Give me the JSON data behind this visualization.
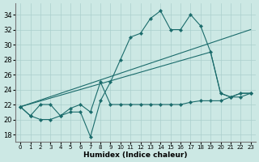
{
  "xlabel": "Humidex (Indice chaleur)",
  "xlim": [
    -0.5,
    23.5
  ],
  "ylim": [
    17,
    35.5
  ],
  "yticks": [
    18,
    20,
    22,
    24,
    26,
    28,
    30,
    32,
    34
  ],
  "xticks": [
    0,
    1,
    2,
    3,
    4,
    5,
    6,
    7,
    8,
    9,
    10,
    11,
    12,
    13,
    14,
    15,
    16,
    17,
    18,
    19,
    20,
    21,
    22,
    23
  ],
  "bg_color": "#cce8e4",
  "grid_color": "#aacfcc",
  "line_color": "#1a6b6b",
  "series": [
    {
      "x": [
        0,
        1,
        2,
        3,
        4,
        5,
        6,
        7,
        8,
        9,
        10,
        11,
        12,
        13,
        14,
        15,
        16,
        17,
        18,
        19,
        20,
        21,
        22,
        23
      ],
      "y": [
        21.7,
        20.5,
        20.0,
        20.0,
        20.5,
        21.0,
        21.0,
        17.7,
        22.5,
        25.0,
        28.0,
        31.0,
        31.5,
        33.5,
        34.5,
        32.0,
        32.0,
        34.0,
        32.5,
        29.0,
        23.5,
        23.0,
        23.5,
        23.5
      ],
      "marker": true
    },
    {
      "x": [
        0,
        1,
        2,
        3,
        4,
        5,
        6,
        7,
        8,
        9,
        10,
        11,
        12,
        13,
        14,
        15,
        16,
        17,
        18,
        19,
        20,
        21,
        22,
        23
      ],
      "y": [
        21.7,
        20.5,
        22.0,
        22.0,
        20.5,
        21.5,
        22.0,
        21.0,
        25.0,
        22.0,
        22.0,
        22.0,
        22.0,
        22.0,
        22.0,
        22.0,
        22.0,
        22.3,
        22.5,
        22.5,
        22.5,
        23.0,
        23.0,
        23.5
      ],
      "marker": true
    },
    {
      "x": [
        0,
        23
      ],
      "y": [
        21.7,
        32.0
      ],
      "marker": false
    },
    {
      "x": [
        0,
        19,
        20,
        21,
        22,
        23
      ],
      "y": [
        21.7,
        29.0,
        23.5,
        23.0,
        23.5,
        23.5
      ],
      "marker": false
    }
  ]
}
